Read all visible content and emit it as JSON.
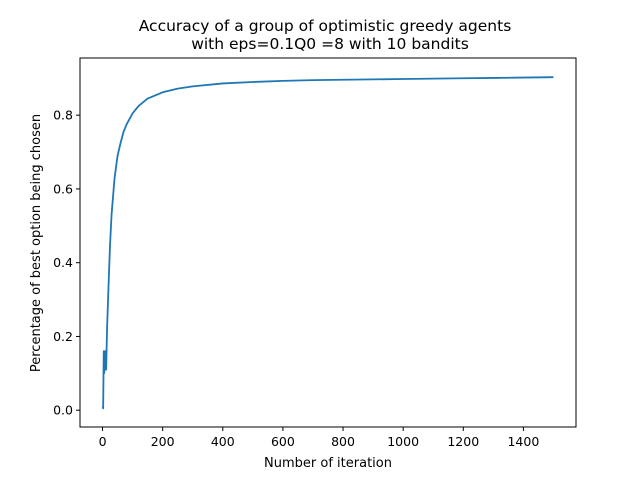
{
  "chart_data": {
    "type": "line",
    "title_line1": "Accuracy of a group of optimistic greedy agents",
    "title_line2": "with eps=0.1Q0 =8 with 10 bandits",
    "xlabel": "Number of iteration",
    "ylabel": "Percentage of best option being chosen",
    "xlim": [
      -75,
      1575
    ],
    "ylim": [
      -0.0455,
      0.955
    ],
    "xticks": [
      0,
      200,
      400,
      600,
      800,
      1000,
      1200,
      1400
    ],
    "yticks": [
      0.0,
      0.2,
      0.4,
      0.6,
      0.8
    ],
    "xtick_labels": [
      "0",
      "200",
      "400",
      "600",
      "800",
      "1000",
      "1200",
      "1400"
    ],
    "ytick_labels": [
      "0.0",
      "0.2",
      "0.4",
      "0.6",
      "0.8"
    ],
    "grid": false,
    "legend": "none",
    "series": [
      {
        "color": "#1f77b4",
        "x": [
          0,
          2,
          4,
          5,
          6,
          8,
          10,
          12,
          15,
          20,
          25,
          30,
          40,
          50,
          60,
          70,
          80,
          100,
          120,
          150,
          200,
          250,
          300,
          400,
          500,
          600,
          700,
          800,
          900,
          1000,
          1100,
          1200,
          1300,
          1400,
          1500
        ],
        "y": [
          0.01,
          0.005,
          0.16,
          0.1,
          0.105,
          0.16,
          0.11,
          0.11,
          0.22,
          0.34,
          0.45,
          0.53,
          0.63,
          0.69,
          0.725,
          0.755,
          0.775,
          0.805,
          0.825,
          0.845,
          0.862,
          0.872,
          0.878,
          0.886,
          0.89,
          0.893,
          0.895,
          0.896,
          0.897,
          0.898,
          0.899,
          0.9,
          0.901,
          0.902,
          0.903
        ]
      }
    ]
  }
}
